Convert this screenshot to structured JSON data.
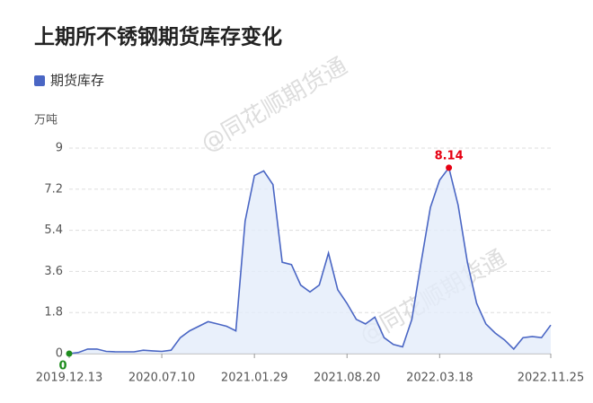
{
  "chart_data": {
    "type": "area",
    "title": "上期所不锈钢期货库存变化",
    "y_label": "万吨",
    "watermark": "@同花顺期货通",
    "categories": [
      "2019.12.13",
      null,
      null,
      null,
      null,
      null,
      null,
      null,
      null,
      null,
      "2020.07.10",
      null,
      null,
      null,
      null,
      null,
      null,
      null,
      null,
      null,
      "2021.01.29",
      null,
      null,
      null,
      null,
      null,
      null,
      null,
      null,
      null,
      "2021.08.20",
      null,
      null,
      null,
      null,
      null,
      null,
      null,
      null,
      null,
      "2022.03.18",
      null,
      null,
      null,
      null,
      null,
      null,
      null,
      null,
      null,
      null,
      null,
      "2022.11.25"
    ],
    "series": [
      {
        "name": "期货库存",
        "color": "#4a66c4",
        "fill": "#e3ecfa",
        "values": [
          0,
          0.05,
          0.2,
          0.2,
          0.1,
          0.08,
          0.08,
          0.08,
          0.15,
          0.12,
          0.1,
          0.15,
          0.7,
          1.0,
          1.2,
          1.4,
          1.3,
          1.2,
          1.0,
          5.8,
          7.8,
          8.0,
          7.4,
          4.0,
          3.9,
          3.0,
          2.7,
          3.0,
          4.4,
          2.8,
          2.2,
          1.5,
          1.3,
          1.6,
          0.7,
          0.4,
          0.3,
          1.5,
          4.0,
          6.4,
          7.6,
          8.14,
          6.5,
          4.0,
          2.2,
          1.3,
          0.9,
          0.6,
          0.2,
          0.7,
          0.75,
          0.7,
          1.25
        ]
      }
    ],
    "ylim": [
      0,
      9
    ],
    "yticks": [
      0,
      1.8,
      3.6,
      5.4,
      7.2,
      9
    ],
    "grid": true,
    "max_color": "#e60012",
    "min_color": "#1e8c1e"
  }
}
